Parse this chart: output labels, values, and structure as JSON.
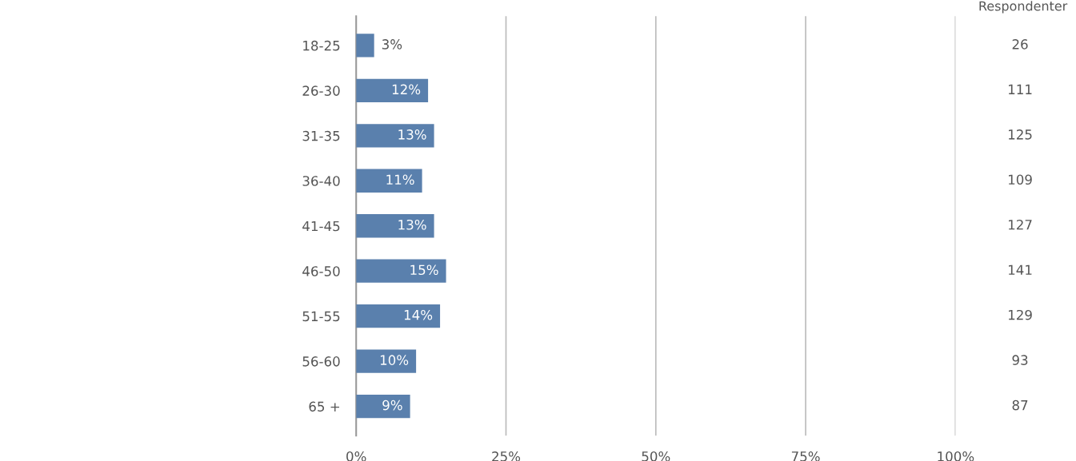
{
  "chart_data": {
    "type": "bar",
    "orientation": "horizontal",
    "categories": [
      "18-25",
      "26-30",
      "31-35",
      "36-40",
      "41-45",
      "46-50",
      "51-55",
      "56-60",
      "65 +"
    ],
    "values": [
      3,
      12,
      13,
      11,
      13,
      15,
      14,
      10,
      9
    ],
    "value_labels": [
      "3%",
      "12%",
      "13%",
      "11%",
      "13%",
      "15%",
      "14%",
      "10%",
      "9%"
    ],
    "color": "#5a80ad",
    "xlim": [
      0,
      100
    ],
    "xticks": [
      {
        "value": 0,
        "label": "0%"
      },
      {
        "value": 25,
        "label": "25%"
      },
      {
        "value": 50,
        "label": "50%"
      },
      {
        "value": 75,
        "label": "75%"
      },
      {
        "value": 100,
        "label": "100%"
      }
    ],
    "grid": "x",
    "legend": false,
    "annotations": [
      "Respondenter",
      "26",
      "111",
      "125",
      "109",
      "127",
      "141",
      "129",
      "93",
      "87"
    ]
  }
}
